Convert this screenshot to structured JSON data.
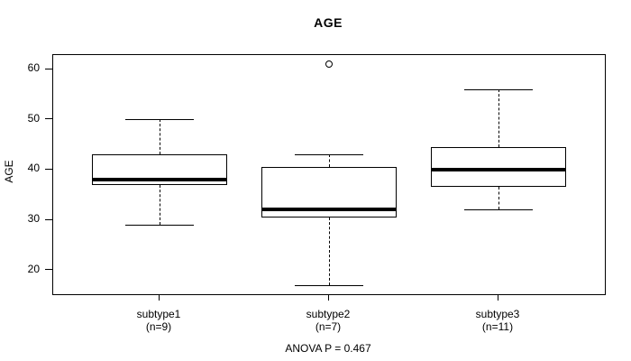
{
  "title": "AGE",
  "chart_data": {
    "type": "box",
    "title": "AGE",
    "xlabel": "",
    "ylabel": "AGE",
    "annotation": "ANOVA P = 0.467",
    "grid": false,
    "legend": "none",
    "y_ticks": [
      20,
      30,
      40,
      50,
      60
    ],
    "ylim": [
      15.2,
      62.8
    ],
    "categories": [
      "subtype1",
      "subtype2",
      "subtype3"
    ],
    "category_sublabels": [
      "(n=9)",
      "(n=7)",
      "(n=11)"
    ],
    "series": [
      {
        "name": "subtype1",
        "n": 9,
        "whisker_low": 29,
        "q1": 37,
        "median": 38,
        "q3": 43,
        "whisker_high": 50,
        "outliers": []
      },
      {
        "name": "subtype2",
        "n": 7,
        "whisker_low": 17,
        "q1": 30.5,
        "median": 32,
        "q3": 40.5,
        "whisker_high": 43,
        "outliers": [
          61
        ]
      },
      {
        "name": "subtype3",
        "n": 11,
        "whisker_low": 32,
        "q1": 36.5,
        "median": 40,
        "q3": 44.5,
        "whisker_high": 56,
        "outliers": []
      }
    ]
  },
  "colors": {
    "line": "#000000",
    "box_fill": "#ffffff",
    "background": "#ffffff"
  }
}
